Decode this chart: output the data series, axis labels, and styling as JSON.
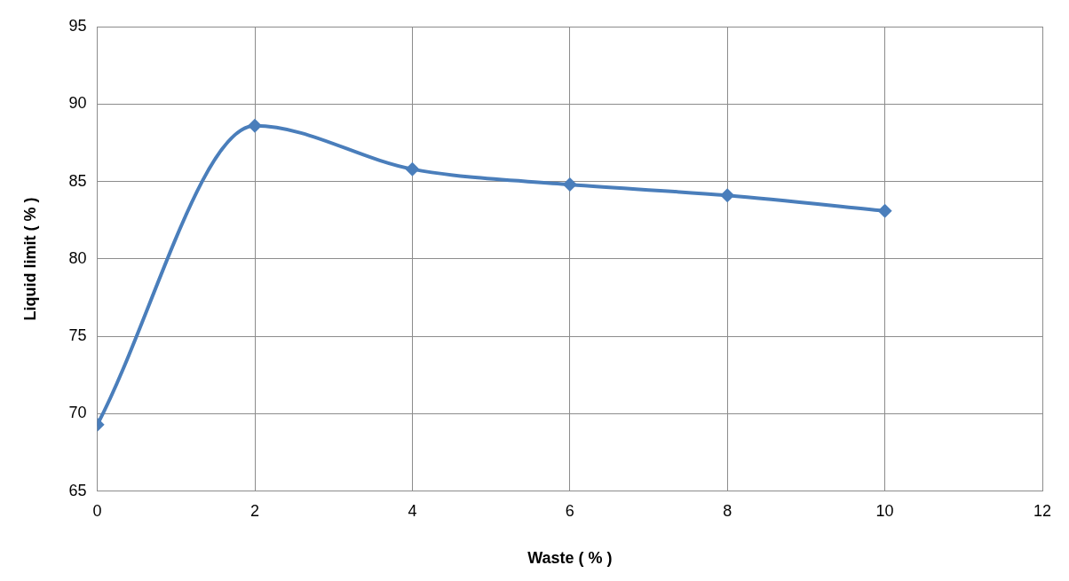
{
  "chart_data": {
    "type": "line",
    "xlabel": "Waste ( % )",
    "ylabel": "Liquid limit ( % )",
    "x": [
      0,
      2,
      4,
      6,
      8,
      10
    ],
    "series": [
      {
        "color": "#4a7ebb",
        "values": [
          69.3,
          88.6,
          85.8,
          84.8,
          84.1,
          83.1
        ]
      }
    ],
    "xlim": [
      0,
      12
    ],
    "xticks": [
      0,
      2,
      4,
      6,
      8,
      10,
      12
    ],
    "ylim": [
      65,
      95
    ],
    "yticks": [
      65,
      70,
      75,
      80,
      85,
      90,
      95
    ],
    "grid": true,
    "legend": false,
    "marker": "diamond",
    "line_style": "solid"
  }
}
